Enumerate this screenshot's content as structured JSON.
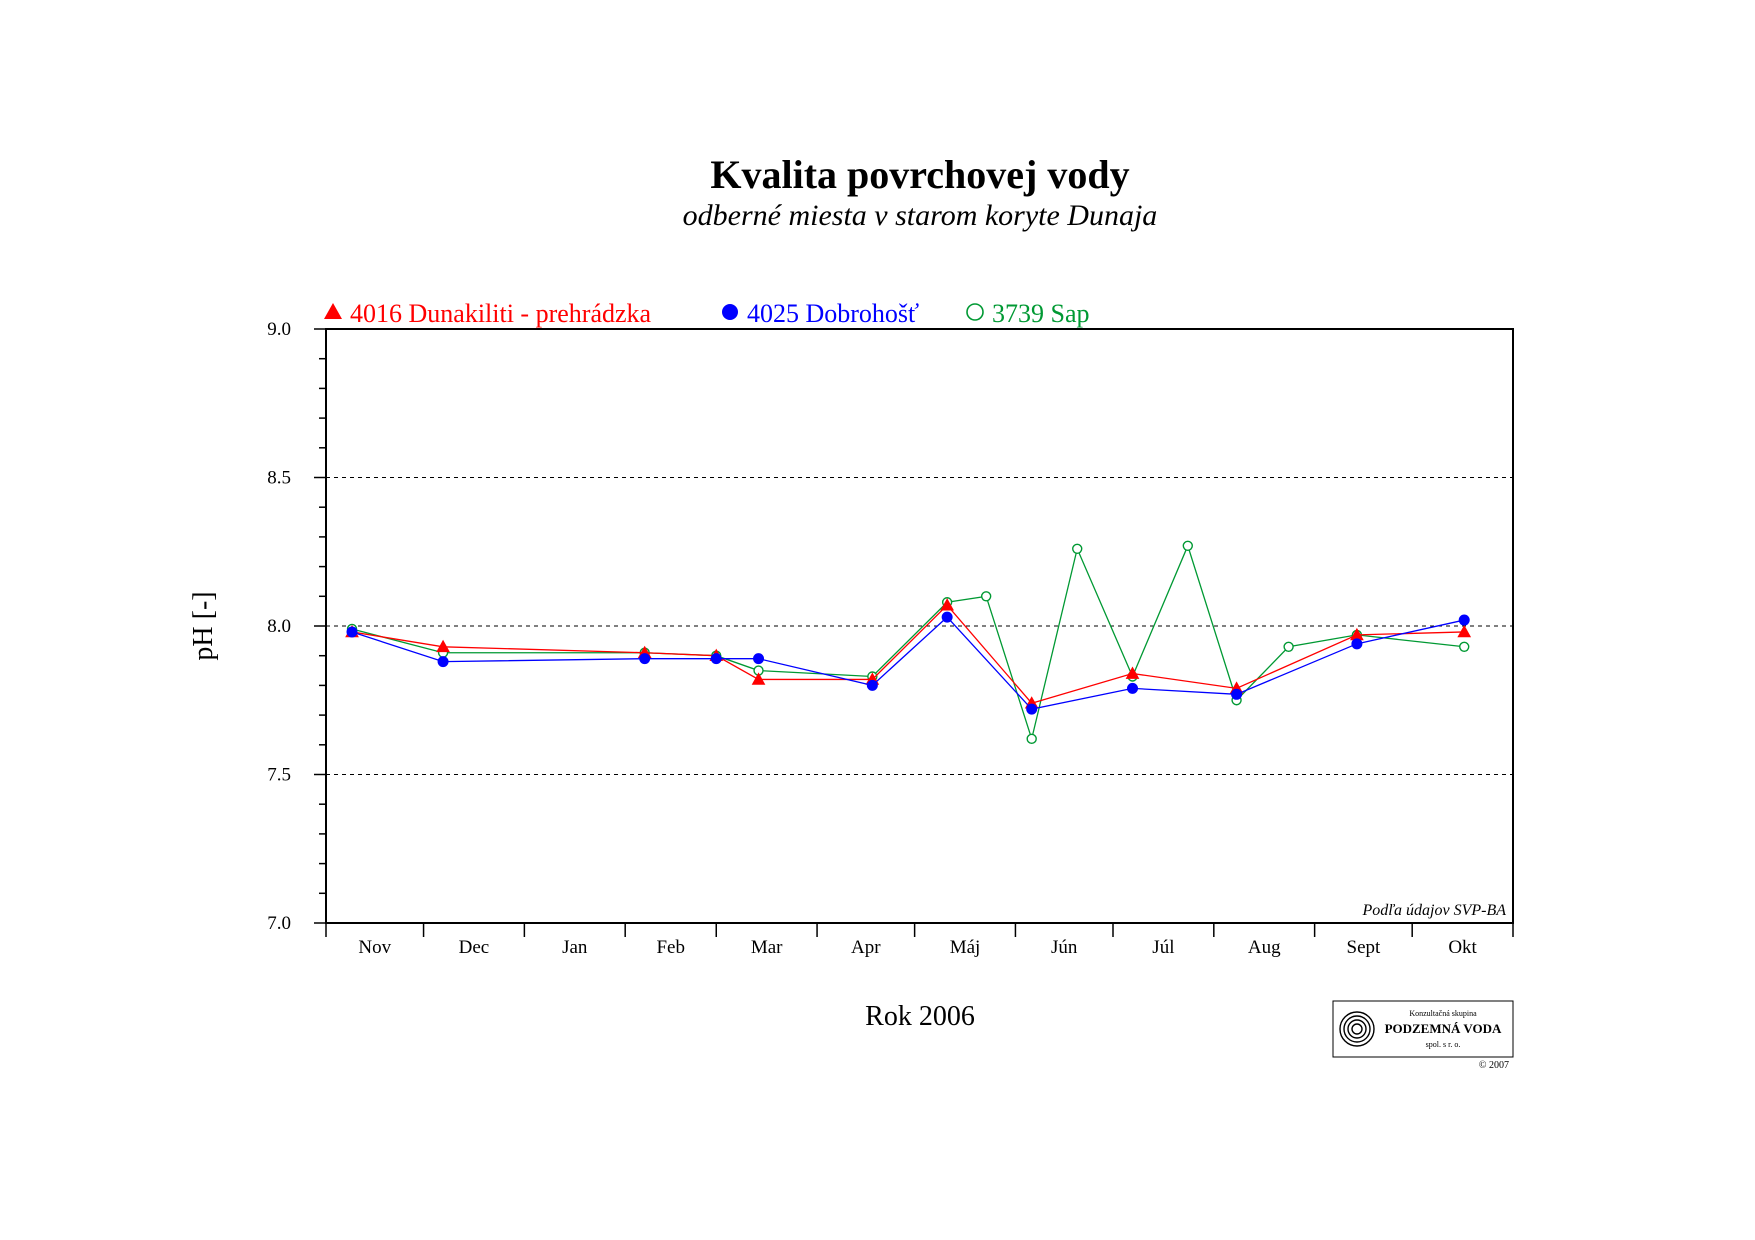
{
  "chart_data": {
    "type": "line",
    "title": "Kvalita povrchovej vody",
    "subtitle": "odberné miesta v starom koryte Dunaja",
    "xlabel": "Rok 2006",
    "ylabel": "pH [-]",
    "ylim": [
      7.0,
      9.0
    ],
    "yticks": [
      "7.0",
      "7.5",
      "8.0",
      "8.5",
      "9.0"
    ],
    "ygrid": [
      7.5,
      8.0,
      8.5
    ],
    "xlim": [
      "2005-11-01",
      "2006-11-01"
    ],
    "months": [
      "Nov",
      "Dec",
      "Jan",
      "Feb",
      "Mar",
      "Apr",
      "Máj",
      "Jún",
      "Júl",
      "Aug",
      "Sept",
      "Okt"
    ],
    "legend_position": "top-left",
    "source_note": "Podľa údajov SVP-BA",
    "series": [
      {
        "name": "4016 Dunakiliti - prehrádzka",
        "color": "#ff0000",
        "marker": "triangle-filled",
        "x": [
          "2005-11-09",
          "2005-12-07",
          "2006-02-07",
          "2006-03-01",
          "2006-03-14",
          "2006-04-18",
          "2006-05-11",
          "2006-06-06",
          "2006-07-07",
          "2006-08-08",
          "2006-09-14",
          "2006-10-17"
        ],
        "y": [
          7.98,
          7.93,
          7.91,
          7.9,
          7.82,
          7.82,
          8.07,
          7.74,
          7.84,
          7.79,
          7.97,
          7.98
        ]
      },
      {
        "name": "4025 Dobrohošť",
        "color": "#0000ff",
        "marker": "circle-filled",
        "x": [
          "2005-11-09",
          "2005-12-07",
          "2006-02-07",
          "2006-03-01",
          "2006-03-14",
          "2006-04-18",
          "2006-05-11",
          "2006-06-06",
          "2006-07-07",
          "2006-08-08",
          "2006-09-14",
          "2006-10-17"
        ],
        "y": [
          7.98,
          7.88,
          7.89,
          7.89,
          7.89,
          7.8,
          8.03,
          7.72,
          7.79,
          7.77,
          7.94,
          8.02
        ]
      },
      {
        "name": "3739 Sap",
        "color": "#009933",
        "marker": "circle-open",
        "x": [
          "2005-11-09",
          "2005-12-07",
          "2006-02-07",
          "2006-03-01",
          "2006-03-14",
          "2006-04-18",
          "2006-05-11",
          "2006-05-23",
          "2006-06-06",
          "2006-06-20",
          "2006-07-07",
          "2006-07-24",
          "2006-08-08",
          "2006-08-24",
          "2006-09-14",
          "2006-10-17"
        ],
        "y": [
          7.99,
          7.91,
          7.91,
          7.9,
          7.85,
          7.83,
          8.08,
          8.1,
          7.62,
          8.26,
          7.83,
          8.27,
          7.75,
          7.93,
          7.97,
          7.93
        ]
      }
    ]
  },
  "logo": {
    "line1": "Konzultačná skupina",
    "line2": "PODZEMNÁ VODA",
    "line3": "spol. s r. o.",
    "copyright": "© 2007"
  }
}
